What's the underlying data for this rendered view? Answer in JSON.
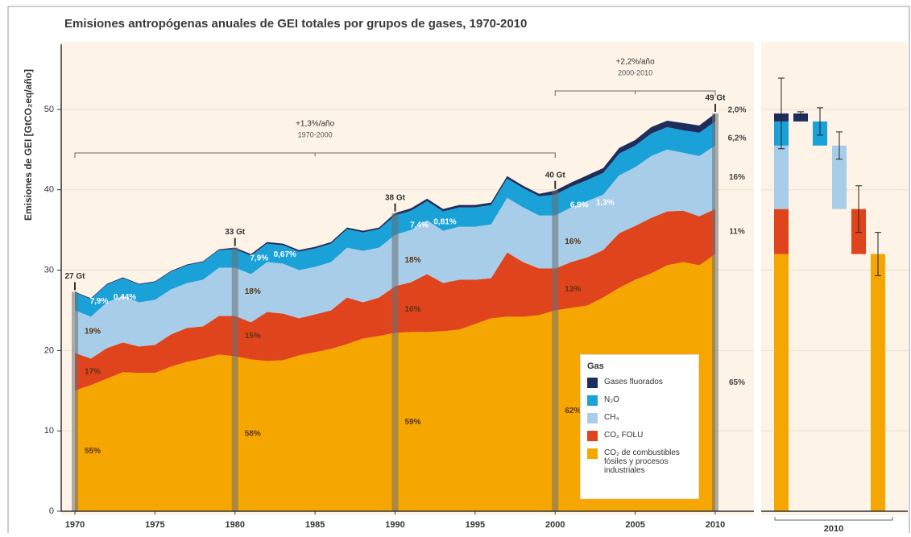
{
  "chart_data": {
    "type": "area",
    "stacked": true,
    "title": "Emisiones antropógenas anuales de GEI totales por grupos de gases, 1970-2010",
    "y_label": "Emisiones de GEI [GtCO₂eq/año]",
    "x": [
      1970,
      1971,
      1972,
      1973,
      1974,
      1975,
      1976,
      1977,
      1978,
      1979,
      1980,
      1981,
      1982,
      1983,
      1984,
      1985,
      1986,
      1987,
      1988,
      1989,
      1990,
      1991,
      1992,
      1993,
      1994,
      1995,
      1996,
      1997,
      1998,
      1999,
      2000,
      2001,
      2002,
      2003,
      2004,
      2005,
      2006,
      2007,
      2008,
      2009,
      2010
    ],
    "xlim": [
      1970,
      2010
    ],
    "xticks": [
      1970,
      1975,
      1980,
      1985,
      1990,
      1995,
      2000,
      2005,
      2010
    ],
    "ylim": [
      0,
      56
    ],
    "yticks": [
      0,
      10,
      20,
      30,
      40,
      50
    ],
    "grid": true,
    "series": [
      {
        "name": "CO₂ de combustibles fósiles y procesos industriales",
        "color": "#f5a600",
        "values": [
          15,
          15.7,
          16.5,
          17.3,
          17.2,
          17.2,
          18,
          18.6,
          19,
          19.5,
          19.3,
          18.9,
          18.7,
          18.8,
          19.4,
          19.8,
          20.2,
          20.8,
          21.5,
          21.8,
          22.2,
          22.3,
          22.3,
          22.4,
          22.6,
          23.3,
          24,
          24.2,
          24.2,
          24.4,
          25,
          25.3,
          25.6,
          26.6,
          27.8,
          28.8,
          29.6,
          30.6,
          31,
          30.6,
          32
        ]
      },
      {
        "name": "CO₂ FOLU",
        "color": "#e0441d",
        "values": [
          4.7,
          3.3,
          3.8,
          3.7,
          3.3,
          3.5,
          4.0,
          4.2,
          4.0,
          4.8,
          5.0,
          4.6,
          6.1,
          5.8,
          4.6,
          4.7,
          4.8,
          5.8,
          4.5,
          4.8,
          5.8,
          6.2,
          7.2,
          6.0,
          6.2,
          5.5,
          5.0,
          8.0,
          6.8,
          5.8,
          5.2,
          5.7,
          6.0,
          5.9,
          6.8,
          6.7,
          6.9,
          6.7,
          6.4,
          6.1,
          5.6
        ]
      },
      {
        "name": "CH₄",
        "color": "#a7cde9",
        "values": [
          5.3,
          5.2,
          5.7,
          5.8,
          5.5,
          5.6,
          5.6,
          5.6,
          5.8,
          6.0,
          6.0,
          6.0,
          6.2,
          6.2,
          6.0,
          5.9,
          6.0,
          6.2,
          6.4,
          6.2,
          6.4,
          6.5,
          6.7,
          6.5,
          6.6,
          6.6,
          6.7,
          6.8,
          6.8,
          6.6,
          6.6,
          6.8,
          7.0,
          6.9,
          7.2,
          7.3,
          7.7,
          7.7,
          7.2,
          7.5,
          7.9
        ]
      },
      {
        "name": "N₂O",
        "color": "#1aa1d8",
        "values": [
          2.2,
          2.2,
          2.2,
          2.2,
          2.2,
          2.2,
          2.2,
          2.2,
          2.2,
          2.2,
          2.3,
          2.3,
          2.3,
          2.3,
          2.3,
          2.3,
          2.3,
          2.3,
          2.3,
          2.3,
          2.4,
          2.4,
          2.4,
          2.4,
          2.4,
          2.4,
          2.4,
          2.4,
          2.4,
          2.4,
          2.6,
          2.6,
          2.6,
          2.7,
          2.7,
          2.7,
          2.8,
          2.8,
          2.8,
          2.9,
          3.0
        ]
      },
      {
        "name": "Gases fluorados",
        "color": "#1f2d5c",
        "values": [
          0.1,
          0.1,
          0.1,
          0.1,
          0.1,
          0.1,
          0.1,
          0.1,
          0.1,
          0.1,
          0.2,
          0.2,
          0.2,
          0.2,
          0.2,
          0.2,
          0.2,
          0.2,
          0.2,
          0.2,
          0.3,
          0.3,
          0.3,
          0.3,
          0.3,
          0.3,
          0.3,
          0.3,
          0.3,
          0.3,
          0.5,
          0.5,
          0.6,
          0.6,
          0.7,
          0.7,
          0.8,
          0.8,
          0.9,
          0.9,
          1.0
        ]
      }
    ],
    "legend_title": "Gas",
    "totals": [
      {
        "year": 1970,
        "label": "27 Gt"
      },
      {
        "year": 1980,
        "label": "33 Gt"
      },
      {
        "year": 1990,
        "label": "38 Gt"
      },
      {
        "year": 2000,
        "label": "40 Gt"
      },
      {
        "year": 2010,
        "label": "49 Gt"
      }
    ],
    "shares": [
      {
        "year": 1970,
        "labels": [
          "55%",
          "17%",
          "19%",
          "7,9%",
          "0,44%"
        ]
      },
      {
        "year": 1980,
        "labels": [
          "58%",
          "15%",
          "18%",
          "7,9%",
          "0,67%"
        ]
      },
      {
        "year": 1990,
        "labels": [
          "59%",
          "16%",
          "18%",
          "7,4%",
          "0,81%"
        ]
      },
      {
        "year": 2000,
        "labels": [
          "62%",
          "13%",
          "16%",
          "6,9%",
          "1,3%"
        ]
      },
      {
        "year": 2010,
        "labels": [
          "65%",
          "11%",
          "16%",
          "6,2%",
          "2,0%"
        ]
      }
    ],
    "growth": [
      {
        "rate": "+1,3%/año",
        "period": "1970-2000",
        "from": 1970,
        "to": 2000
      },
      {
        "rate": "+2,2%/año",
        "period": "2000-2010",
        "from": 2000,
        "to": 2010
      }
    ],
    "panel": {
      "x_label": "2010",
      "total_error": 4.4,
      "errors": [
        2.7,
        2.9,
        1.7,
        1.7,
        0.2
      ]
    }
  }
}
